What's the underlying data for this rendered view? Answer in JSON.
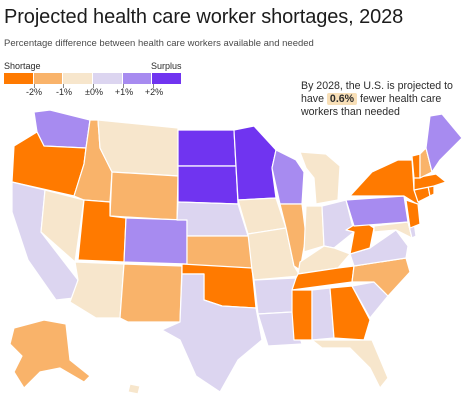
{
  "title": "Projected health care worker shortages, 2028",
  "subtitle": "Percentage difference between health care workers available and needed",
  "legend": {
    "left_label": "Shortage",
    "right_label": "Surplus",
    "bins": [
      {
        "color": "#ff7a00"
      },
      {
        "color": "#f9b36a"
      },
      {
        "color": "#f7e6cc"
      },
      {
        "color": "#dcd5f0"
      },
      {
        "color": "#a78bf0"
      },
      {
        "color": "#7034f0"
      }
    ],
    "ticks": [
      "-2%",
      "-1%",
      "±0%",
      "+1%",
      "+2%"
    ]
  },
  "annotation": {
    "before": "By 2028, the U.S. is projected to have ",
    "value": "0.6%",
    "after": " fewer health care workers than needed"
  },
  "colors": {
    "shortage_strong": "#ff7a00",
    "shortage": "#f9b36a",
    "neutral_low": "#f7e6cc",
    "neutral_high": "#dcd5f0",
    "surplus": "#a78bf0",
    "surplus_strong": "#7034f0"
  }
}
